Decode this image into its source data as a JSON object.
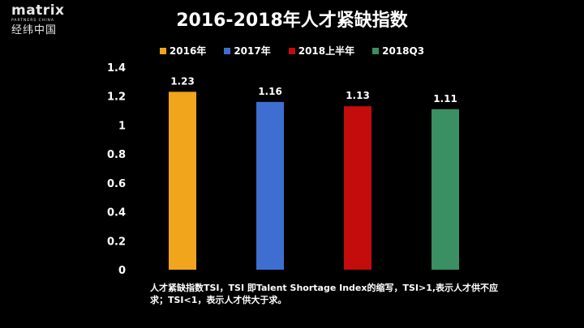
{
  "logo": {
    "main": "matrix",
    "sub": "PARTNERS CHINA",
    "cn": "经纬中国"
  },
  "colors": {
    "background": "#000000",
    "text": "#ffffff",
    "series": [
      "#f0a51c",
      "#3e6fd0",
      "#c40c0c",
      "#3a8f63"
    ]
  },
  "chart_data": {
    "type": "bar",
    "title": "2016-2018年人才紧缺指数",
    "categories": [
      "2016年",
      "2017年",
      "2018上半年",
      "2018Q3"
    ],
    "values": [
      1.23,
      1.16,
      1.13,
      1.11
    ],
    "value_labels": [
      "1.23",
      "1.16",
      "1.13",
      "1.11"
    ],
    "legend": [
      "2016年",
      "2017年",
      "2018上半年",
      "2018Q3"
    ],
    "legend_position": "top",
    "ylim": [
      0,
      1.4
    ],
    "yticks": [
      0,
      0.2,
      0.4,
      0.6,
      0.8,
      1,
      1.2,
      1.4
    ],
    "ytick_labels": [
      "0",
      "0.2",
      "0.4",
      "0.6",
      "0.8",
      "1",
      "1.2",
      "1.4"
    ],
    "grid": false
  },
  "note": "人才紧缺指数TSI，TSI 即Talent Shortage Index的缩写，TSI>1,表示人才供不应求；TSI<1，表示人才供大于求。"
}
